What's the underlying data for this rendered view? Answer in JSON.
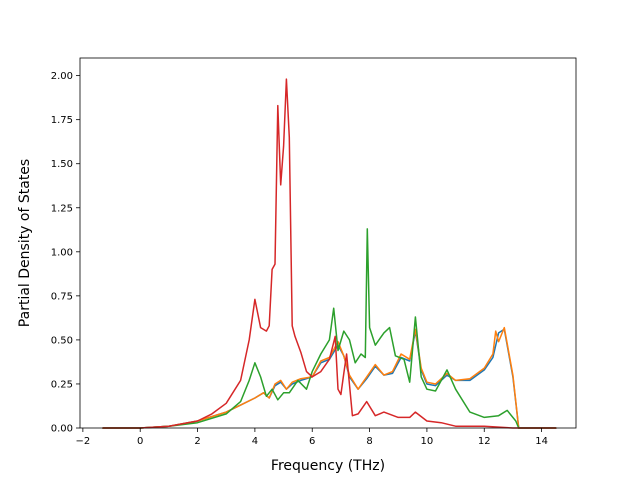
{
  "chart_data": {
    "type": "line",
    "title": "",
    "xlabel": "Frequency (THz)",
    "ylabel": "Partial Density of States",
    "xlim": [
      -2.1,
      15.2
    ],
    "ylim": [
      0,
      2.1
    ],
    "xticks": [
      -2,
      0,
      2,
      4,
      6,
      8,
      10,
      12,
      14
    ],
    "xtick_labels": [
      "−2",
      "0",
      "2",
      "4",
      "6",
      "8",
      "10",
      "12",
      "14"
    ],
    "yticks": [
      0,
      0.25,
      0.5,
      0.75,
      1.0,
      1.25,
      1.5,
      1.75,
      2.0
    ],
    "ytick_labels": [
      "0.00",
      "0.25",
      "0.50",
      "0.75",
      "1.00",
      "1.25",
      "1.50",
      "1.75",
      "2.00"
    ],
    "grid": false,
    "legend": "none",
    "series": [
      {
        "color": "#1f77b4",
        "x": [
          -1.3,
          0,
          1,
          2,
          3,
          3.5,
          4,
          4.3,
          4.5,
          4.7,
          4.9,
          5.1,
          5.3,
          5.6,
          6,
          6.3,
          6.6,
          6.9,
          7.1,
          7.3,
          7.6,
          7.9,
          8.2,
          8.5,
          8.8,
          9.1,
          9.4,
          9.6,
          9.8,
          10,
          10.3,
          10.7,
          11,
          11.5,
          12,
          12.3,
          12.5,
          12.7,
          13,
          13.2,
          14.5
        ],
        "y": [
          0,
          0,
          0.01,
          0.04,
          0.09,
          0.13,
          0.17,
          0.2,
          0.17,
          0.24,
          0.26,
          0.22,
          0.25,
          0.27,
          0.29,
          0.37,
          0.39,
          0.47,
          0.41,
          0.29,
          0.22,
          0.28,
          0.35,
          0.3,
          0.31,
          0.4,
          0.38,
          0.55,
          0.33,
          0.25,
          0.24,
          0.3,
          0.27,
          0.27,
          0.33,
          0.4,
          0.54,
          0.56,
          0.29,
          0,
          0
        ]
      },
      {
        "color": "#ff7f0e",
        "x": [
          -1.3,
          0,
          1,
          2,
          3,
          3.5,
          4,
          4.3,
          4.5,
          4.7,
          4.9,
          5.1,
          5.3,
          5.6,
          6,
          6.3,
          6.6,
          6.9,
          7.1,
          7.3,
          7.6,
          7.9,
          8.2,
          8.5,
          8.8,
          9.1,
          9.4,
          9.6,
          9.8,
          10,
          10.3,
          10.7,
          11,
          11.5,
          12,
          12.3,
          12.4,
          12.5,
          12.7,
          13,
          13.2,
          14.5
        ],
        "y": [
          0,
          0,
          0.01,
          0.04,
          0.09,
          0.13,
          0.17,
          0.2,
          0.17,
          0.25,
          0.27,
          0.22,
          0.26,
          0.28,
          0.29,
          0.38,
          0.4,
          0.49,
          0.41,
          0.3,
          0.22,
          0.29,
          0.36,
          0.3,
          0.32,
          0.42,
          0.39,
          0.56,
          0.34,
          0.26,
          0.25,
          0.31,
          0.27,
          0.28,
          0.34,
          0.42,
          0.55,
          0.49,
          0.57,
          0.3,
          0,
          0
        ]
      },
      {
        "color": "#2ca02c",
        "x": [
          -1.3,
          0,
          1,
          2,
          3,
          3.5,
          3.8,
          4,
          4.2,
          4.4,
          4.6,
          4.8,
          5,
          5.2,
          5.5,
          5.8,
          6,
          6.3,
          6.6,
          6.75,
          6.9,
          7.1,
          7.3,
          7.5,
          7.7,
          7.85,
          7.92,
          8,
          8.2,
          8.5,
          8.7,
          8.9,
          9.2,
          9.4,
          9.6,
          9.8,
          10,
          10.3,
          10.7,
          11,
          11.5,
          12,
          12.5,
          12.8,
          13.1,
          13.2,
          14.5
        ],
        "y": [
          0,
          0,
          0.01,
          0.03,
          0.08,
          0.15,
          0.27,
          0.37,
          0.29,
          0.18,
          0.22,
          0.16,
          0.2,
          0.2,
          0.27,
          0.22,
          0.32,
          0.42,
          0.5,
          0.68,
          0.44,
          0.55,
          0.5,
          0.37,
          0.42,
          0.4,
          1.13,
          0.57,
          0.47,
          0.54,
          0.57,
          0.41,
          0.39,
          0.26,
          0.63,
          0.29,
          0.22,
          0.21,
          0.33,
          0.22,
          0.09,
          0.06,
          0.07,
          0.1,
          0.04,
          0,
          0
        ]
      },
      {
        "color": "#d62728",
        "x": [
          -1.3,
          0,
          1,
          2,
          2.5,
          3,
          3.5,
          3.8,
          4,
          4.2,
          4.4,
          4.5,
          4.6,
          4.7,
          4.8,
          4.9,
          5,
          5.1,
          5.2,
          5.3,
          5.4,
          5.6,
          5.8,
          6,
          6.3,
          6.6,
          6.8,
          6.9,
          7,
          7.1,
          7.2,
          7.4,
          7.6,
          7.9,
          8.2,
          8.5,
          9,
          9.4,
          9.6,
          10,
          10.5,
          11,
          12,
          13,
          14.5
        ],
        "y": [
          0,
          0,
          0.01,
          0.04,
          0.08,
          0.14,
          0.27,
          0.5,
          0.73,
          0.57,
          0.55,
          0.58,
          0.9,
          0.93,
          1.83,
          1.38,
          1.6,
          1.98,
          1.65,
          0.58,
          0.52,
          0.43,
          0.32,
          0.29,
          0.32,
          0.39,
          0.52,
          0.22,
          0.19,
          0.31,
          0.42,
          0.07,
          0.08,
          0.15,
          0.07,
          0.09,
          0.06,
          0.06,
          0.09,
          0.04,
          0.03,
          0.01,
          0.01,
          0,
          0
        ]
      }
    ]
  }
}
